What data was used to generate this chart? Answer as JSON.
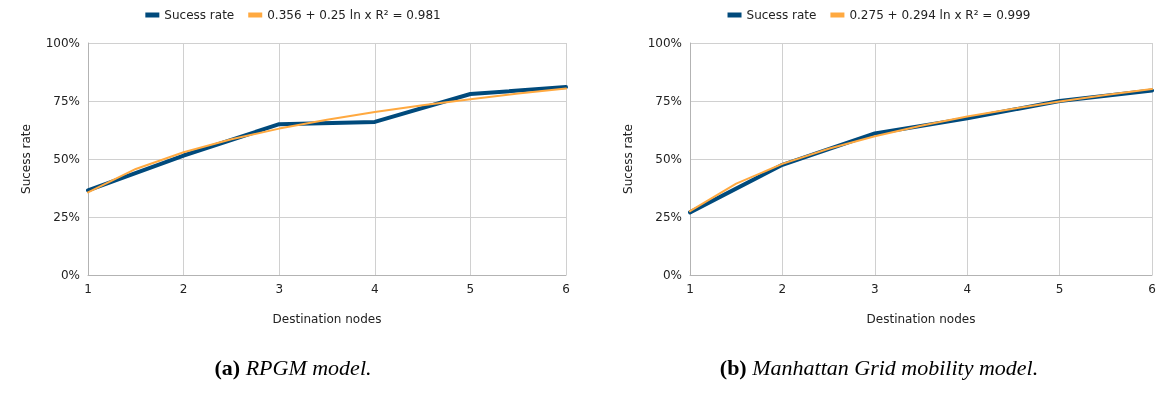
{
  "chart_data": [
    {
      "type": "line",
      "xlabel": "Destination nodes",
      "ylabel": "Sucess rate",
      "annotations": [
        "(a) RPGM model."
      ],
      "xlim": [
        1,
        6
      ],
      "xticks": [
        1,
        2,
        3,
        4,
        5,
        6
      ],
      "ylim": [
        0,
        100
      ],
      "yticks": [
        {
          "value": 0,
          "label": "0%"
        },
        {
          "value": 25,
          "label": "25%"
        },
        {
          "value": 50,
          "label": "50%"
        },
        {
          "value": 75,
          "label": "75%"
        },
        {
          "value": 100,
          "label": "100%"
        }
      ],
      "grid": true,
      "legend": "top",
      "marker": "none",
      "line_style": "solid",
      "series": [
        {
          "name": "Sucess rate",
          "color": "#004a7c",
          "x": [
            1,
            2,
            3,
            4,
            5,
            6
          ],
          "values": [
            36.5,
            51.5,
            65,
            66,
            78,
            81
          ]
        },
        {
          "name": "0.356 + 0.25 ln x R² = 0.981",
          "color": "#ffa940",
          "x": [
            1,
            1.5,
            2,
            2.5,
            3,
            3.5,
            4,
            4.5,
            5,
            5.5,
            6
          ],
          "values": [
            35.6,
            45.7,
            52.9,
            58.5,
            63.1,
            66.9,
            70.3,
            73.2,
            75.8,
            78.2,
            80.4
          ]
        }
      ]
    },
    {
      "type": "line",
      "xlabel": "Destination nodes",
      "ylabel": "Sucess rate",
      "annotations": [
        "(b) Manhattan Grid mobility model."
      ],
      "xlim": [
        1,
        6
      ],
      "xticks": [
        1,
        2,
        3,
        4,
        5,
        6
      ],
      "ylim": [
        0,
        100
      ],
      "yticks": [
        {
          "value": 0,
          "label": "0%"
        },
        {
          "value": 25,
          "label": "25%"
        },
        {
          "value": 50,
          "label": "50%"
        },
        {
          "value": 75,
          "label": "75%"
        },
        {
          "value": 100,
          "label": "100%"
        }
      ],
      "grid": true,
      "legend": "top",
      "marker": "none",
      "line_style": "solid",
      "series": [
        {
          "name": "Sucess rate",
          "color": "#004a7c",
          "x": [
            1,
            2,
            3,
            4,
            5,
            6
          ],
          "values": [
            27,
            47.5,
            61,
            67.5,
            75,
            79.5
          ]
        },
        {
          "name": "0.275 + 0.294 ln x R² = 0.999",
          "color": "#ffa940",
          "x": [
            1,
            1.5,
            2,
            2.5,
            3,
            3.5,
            4,
            4.5,
            5,
            5.5,
            6
          ],
          "values": [
            27.5,
            39.4,
            47.9,
            54.4,
            59.8,
            64.3,
            68.3,
            71.7,
            74.8,
            77.6,
            80.2
          ]
        }
      ]
    }
  ]
}
